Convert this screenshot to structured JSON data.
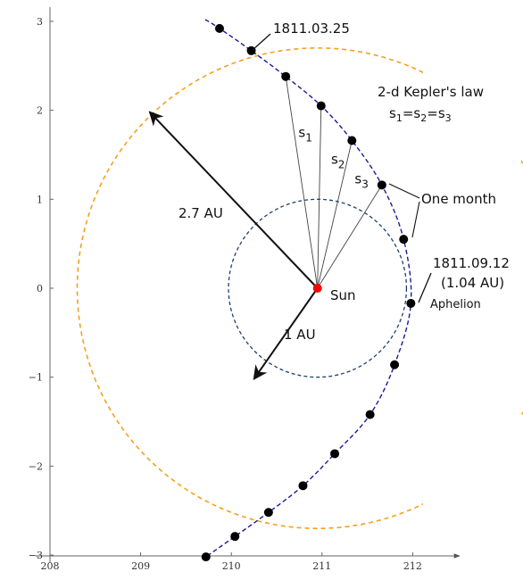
{
  "chart_data": {
    "type": "scatter",
    "title": "",
    "xlabel": "",
    "ylabel": "",
    "xlim": [
      208,
      212.5
    ],
    "ylim": [
      -3.05,
      3.1
    ],
    "x_ticks": [
      208,
      209,
      210,
      211,
      212
    ],
    "y_ticks": [
      -3,
      -2,
      -1,
      0,
      1,
      2,
      3
    ],
    "sun": {
      "x": 210.95,
      "y": 0,
      "label": "Sun",
      "color": "#ff0000"
    },
    "comet_positions": [
      {
        "x": 209.87,
        "y": 2.92
      },
      {
        "x": 210.22,
        "y": 2.67
      },
      {
        "x": 210.6,
        "y": 2.38
      },
      {
        "x": 210.99,
        "y": 2.05
      },
      {
        "x": 211.33,
        "y": 1.66
      },
      {
        "x": 211.66,
        "y": 1.16
      },
      {
        "x": 211.9,
        "y": 0.55
      },
      {
        "x": 211.98,
        "y": -0.17
      },
      {
        "x": 211.8,
        "y": -0.86
      },
      {
        "x": 211.53,
        "y": -1.42
      },
      {
        "x": 211.14,
        "y": -1.86
      },
      {
        "x": 210.79,
        "y": -2.22
      },
      {
        "x": 210.41,
        "y": -2.52
      },
      {
        "x": 210.04,
        "y": -2.79
      },
      {
        "x": 209.72,
        "y": -3.02
      }
    ],
    "orbit_color": "#1a1a99",
    "earth_orbit": {
      "center_x": 210.95,
      "center_y": 0,
      "radius": 1.0,
      "color": "#1f3f6f"
    },
    "big_circle": {
      "center_x": 210.95,
      "center_y": 0,
      "radius": 2.7,
      "color": "#f5a01a"
    },
    "radius_arrows": [
      {
        "label": "2.7 AU",
        "to_x": 209.1,
        "to_y": 1.98
      },
      {
        "label": "1 AU",
        "to_x": 210.25,
        "to_y": -1.02
      }
    ],
    "sector_labels": [
      {
        "text": "s",
        "sub": "1",
        "x": 210.74,
        "y": 1.7
      },
      {
        "text": "s",
        "sub": "2",
        "x": 211.1,
        "y": 1.4
      },
      {
        "text": "s",
        "sub": "3",
        "x": 211.36,
        "y": 1.18
      }
    ],
    "annotations": {
      "date_start": "1811.03.25",
      "kepler_title": "2-d Kepler's law",
      "kepler_equation": {
        "s": "s",
        "i1": "1",
        "eq": "=",
        "i2": "2",
        "i3": "3"
      },
      "one_month": "One month",
      "aphelion_date": "1811.09.12",
      "aphelion_distance": "(1.04 AU)",
      "aphelion": "Aphelion",
      "sun": "Sun"
    }
  }
}
